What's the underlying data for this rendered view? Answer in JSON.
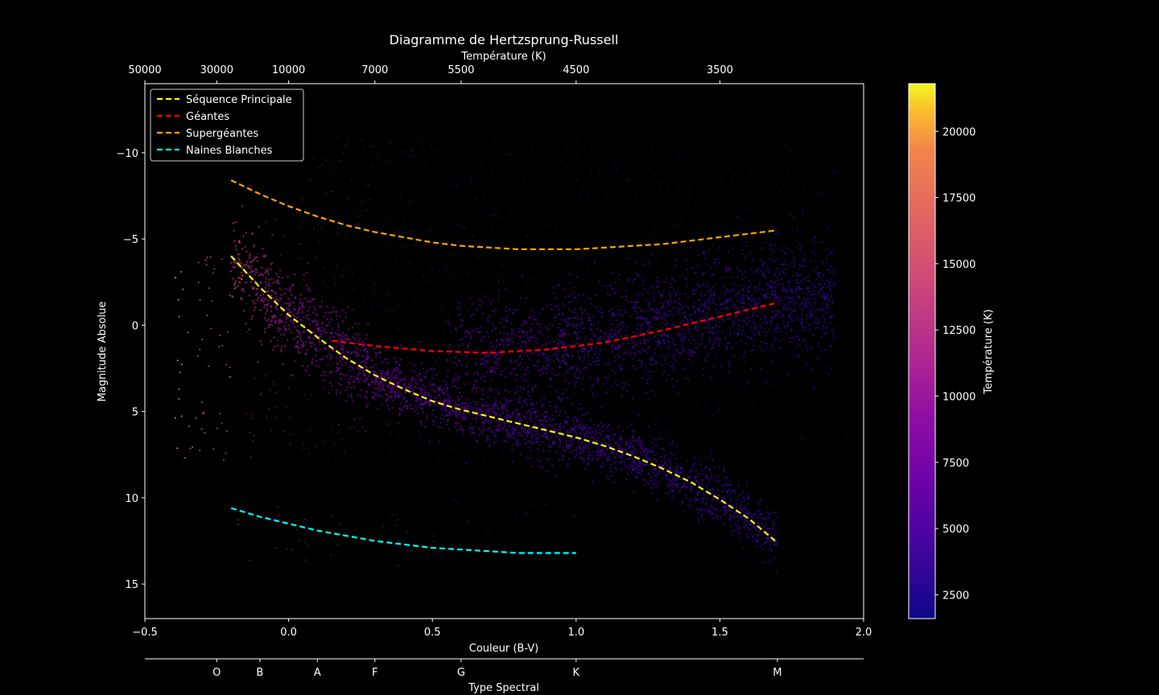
{
  "chart_data": {
    "type": "scatter",
    "title": "Diagramme de Hertzsprung-Russell",
    "xlabel": "Couleur (B-V)",
    "ylabel": "Magnitude Absolue",
    "top_axis_label": "Température (K)",
    "bottom_axis_label": "Type Spectral",
    "colorbar_label": "Température (K)",
    "xlim": [
      -0.5,
      2.0
    ],
    "ylim": [
      17,
      -14
    ],
    "y_inverted": true,
    "x_ticks": [
      {
        "value": -0.5,
        "label": "−0.5"
      },
      {
        "value": 0.0,
        "label": "0.0"
      },
      {
        "value": 0.5,
        "label": "0.5"
      },
      {
        "value": 1.0,
        "label": "1.0"
      },
      {
        "value": 1.5,
        "label": "1.5"
      },
      {
        "value": 2.0,
        "label": "2.0"
      }
    ],
    "y_ticks": [
      {
        "value": -10,
        "label": "−10"
      },
      {
        "value": -5,
        "label": "−5"
      },
      {
        "value": 0,
        "label": "0"
      },
      {
        "value": 5,
        "label": "5"
      },
      {
        "value": 10,
        "label": "10"
      },
      {
        "value": 15,
        "label": "15"
      }
    ],
    "temperature_ticks": [
      {
        "bv": -0.5,
        "label": "50000"
      },
      {
        "bv": -0.25,
        "label": "30000"
      },
      {
        "bv": 0.0,
        "label": "10000"
      },
      {
        "bv": 0.3,
        "label": "7000"
      },
      {
        "bv": 0.6,
        "label": "5500"
      },
      {
        "bv": 1.0,
        "label": "4500"
      },
      {
        "bv": 1.5,
        "label": "3500"
      }
    ],
    "spectral_ticks": [
      {
        "bv": -0.25,
        "label": "O"
      },
      {
        "bv": -0.1,
        "label": "B"
      },
      {
        "bv": 0.1,
        "label": "A"
      },
      {
        "bv": 0.3,
        "label": "F"
      },
      {
        "bv": 0.6,
        "label": "G"
      },
      {
        "bv": 1.0,
        "label": "K"
      },
      {
        "bv": 1.7,
        "label": "M"
      }
    ],
    "colorbar": {
      "range": [
        1600,
        21800
      ],
      "ticks": [
        2500,
        5000,
        7500,
        10000,
        12500,
        15000,
        17500,
        20000
      ],
      "colormap": "plasma"
    },
    "legend_position": "upper-left",
    "series": [
      {
        "name": "Séquence Principale",
        "color": "#ffff00",
        "style": "dashed",
        "x": [
          -0.2,
          -0.1,
          0.0,
          0.1,
          0.2,
          0.3,
          0.4,
          0.5,
          0.6,
          0.7,
          0.8,
          0.9,
          1.0,
          1.1,
          1.2,
          1.3,
          1.4,
          1.5,
          1.6,
          1.7
        ],
        "y": [
          -4,
          -2.2,
          -0.6,
          0.7,
          1.9,
          2.9,
          3.7,
          4.4,
          4.9,
          5.3,
          5.7,
          6.1,
          6.5,
          7.0,
          7.6,
          8.3,
          9.1,
          10.1,
          11.2,
          12.6
        ]
      },
      {
        "name": "Géantes",
        "color": "#ff0000",
        "style": "dashed",
        "x": [
          0.15,
          0.3,
          0.5,
          0.7,
          0.9,
          1.1,
          1.3,
          1.5,
          1.7
        ],
        "y": [
          0.9,
          1.2,
          1.5,
          1.6,
          1.4,
          1.0,
          0.3,
          -0.5,
          -1.3
        ]
      },
      {
        "name": "Supergéantes",
        "color": "#ffa500",
        "style": "dashed",
        "x": [
          -0.2,
          -0.1,
          0.0,
          0.1,
          0.2,
          0.3,
          0.4,
          0.5,
          0.6,
          0.7,
          0.8,
          0.9,
          1.0,
          1.1,
          1.2,
          1.3,
          1.4,
          1.5,
          1.6,
          1.7
        ],
        "y": [
          -8.4,
          -7.6,
          -6.9,
          -6.3,
          -5.8,
          -5.4,
          -5.1,
          -4.8,
          -4.6,
          -4.5,
          -4.4,
          -4.4,
          -4.4,
          -4.5,
          -4.6,
          -4.7,
          -4.9,
          -5.1,
          -5.3,
          -5.5
        ]
      },
      {
        "name": "Naines Blanches",
        "color": "#00ffff",
        "style": "dashed",
        "x": [
          -0.2,
          -0.1,
          0.0,
          0.1,
          0.2,
          0.3,
          0.4,
          0.5,
          0.6,
          0.7,
          0.8,
          0.9,
          1.0
        ],
        "y": [
          10.6,
          11.1,
          11.5,
          11.9,
          12.2,
          12.5,
          12.7,
          12.9,
          13.0,
          13.1,
          13.2,
          13.2,
          13.2
        ]
      }
    ],
    "scatter_populations": [
      {
        "population": "main_sequence",
        "x_range": [
          -0.2,
          1.7
        ],
        "y_scatter": 1.0
      },
      {
        "population": "giant_branch",
        "x_range": [
          0.6,
          1.85
        ],
        "y_scatter": 1.6
      },
      {
        "population": "hot_outliers",
        "x_range": [
          -0.4,
          -0.2
        ],
        "y_range": [
          -4,
          8
        ]
      },
      {
        "population": "white_dwarfs",
        "x_range": [
          -0.2,
          1.0
        ],
        "y_range": [
          10,
          14
        ]
      }
    ]
  }
}
